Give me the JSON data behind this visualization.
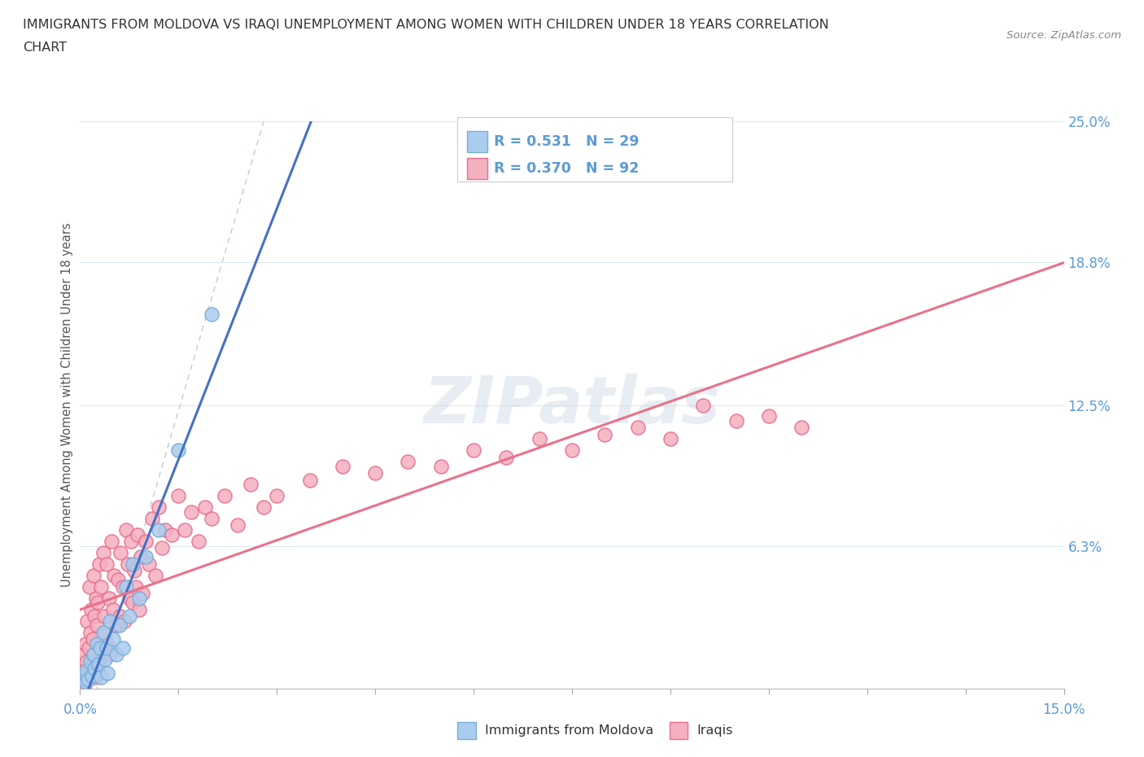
{
  "title_line1": "IMMIGRANTS FROM MOLDOVA VS IRAQI UNEMPLOYMENT AMONG WOMEN WITH CHILDREN UNDER 18 YEARS CORRELATION",
  "title_line2": "CHART",
  "source": "Source: ZipAtlas.com",
  "yaxis_label": "Unemployment Among Women with Children Under 18 years",
  "xaxis_range": [
    0,
    15
  ],
  "yaxis_range": [
    0,
    25
  ],
  "ytick_vals": [
    0,
    6.3,
    12.5,
    18.8,
    25.0
  ],
  "ytick_labels": [
    "",
    "6.3%",
    "12.5%",
    "18.8%",
    "25.0%"
  ],
  "legend_entries": [
    {
      "label": "Immigrants from Moldova",
      "R": 0.531,
      "N": 29
    },
    {
      "label": "Iraqis",
      "R": 0.37,
      "N": 92
    }
  ],
  "moldova_scatter": [
    [
      0.05,
      0.5
    ],
    [
      0.08,
      0.3
    ],
    [
      0.1,
      0.8
    ],
    [
      0.12,
      0.4
    ],
    [
      0.15,
      1.2
    ],
    [
      0.18,
      0.6
    ],
    [
      0.2,
      1.5
    ],
    [
      0.22,
      0.9
    ],
    [
      0.25,
      2.0
    ],
    [
      0.28,
      1.1
    ],
    [
      0.3,
      1.8
    ],
    [
      0.32,
      0.5
    ],
    [
      0.35,
      2.5
    ],
    [
      0.38,
      1.3
    ],
    [
      0.4,
      1.8
    ],
    [
      0.42,
      0.7
    ],
    [
      0.45,
      3.0
    ],
    [
      0.5,
      2.2
    ],
    [
      0.55,
      1.5
    ],
    [
      0.6,
      2.8
    ],
    [
      0.65,
      1.8
    ],
    [
      0.7,
      4.5
    ],
    [
      0.75,
      3.2
    ],
    [
      0.8,
      5.5
    ],
    [
      0.9,
      4.0
    ],
    [
      1.0,
      5.8
    ],
    [
      1.2,
      7.0
    ],
    [
      1.5,
      10.5
    ],
    [
      2.0,
      16.5
    ]
  ],
  "iraqi_scatter": [
    [
      0.02,
      0.3
    ],
    [
      0.03,
      0.8
    ],
    [
      0.05,
      0.5
    ],
    [
      0.06,
      1.5
    ],
    [
      0.07,
      0.2
    ],
    [
      0.08,
      2.0
    ],
    [
      0.09,
      0.8
    ],
    [
      0.1,
      1.2
    ],
    [
      0.11,
      3.0
    ],
    [
      0.12,
      0.5
    ],
    [
      0.13,
      1.8
    ],
    [
      0.14,
      4.5
    ],
    [
      0.15,
      2.5
    ],
    [
      0.16,
      1.0
    ],
    [
      0.17,
      3.5
    ],
    [
      0.18,
      0.8
    ],
    [
      0.19,
      2.2
    ],
    [
      0.2,
      5.0
    ],
    [
      0.21,
      1.5
    ],
    [
      0.22,
      3.2
    ],
    [
      0.23,
      0.5
    ],
    [
      0.24,
      4.0
    ],
    [
      0.25,
      2.8
    ],
    [
      0.26,
      1.2
    ],
    [
      0.27,
      3.8
    ],
    [
      0.28,
      0.7
    ],
    [
      0.29,
      5.5
    ],
    [
      0.3,
      2.0
    ],
    [
      0.32,
      4.5
    ],
    [
      0.33,
      1.8
    ],
    [
      0.35,
      6.0
    ],
    [
      0.37,
      3.2
    ],
    [
      0.38,
      2.5
    ],
    [
      0.4,
      5.5
    ],
    [
      0.42,
      2.0
    ],
    [
      0.44,
      4.0
    ],
    [
      0.45,
      1.5
    ],
    [
      0.48,
      6.5
    ],
    [
      0.5,
      3.5
    ],
    [
      0.52,
      5.0
    ],
    [
      0.55,
      2.8
    ],
    [
      0.58,
      4.8
    ],
    [
      0.6,
      3.2
    ],
    [
      0.62,
      6.0
    ],
    [
      0.65,
      4.5
    ],
    [
      0.68,
      3.0
    ],
    [
      0.7,
      7.0
    ],
    [
      0.73,
      5.5
    ],
    [
      0.75,
      4.0
    ],
    [
      0.78,
      6.5
    ],
    [
      0.8,
      3.8
    ],
    [
      0.83,
      5.2
    ],
    [
      0.85,
      4.5
    ],
    [
      0.88,
      6.8
    ],
    [
      0.9,
      3.5
    ],
    [
      0.93,
      5.8
    ],
    [
      0.95,
      4.2
    ],
    [
      1.0,
      6.5
    ],
    [
      1.05,
      5.5
    ],
    [
      1.1,
      7.5
    ],
    [
      1.15,
      5.0
    ],
    [
      1.2,
      8.0
    ],
    [
      1.25,
      6.2
    ],
    [
      1.3,
      7.0
    ],
    [
      1.4,
      6.8
    ],
    [
      1.5,
      8.5
    ],
    [
      1.6,
      7.0
    ],
    [
      1.7,
      7.8
    ],
    [
      1.8,
      6.5
    ],
    [
      1.9,
      8.0
    ],
    [
      2.0,
      7.5
    ],
    [
      2.2,
      8.5
    ],
    [
      2.4,
      7.2
    ],
    [
      2.6,
      9.0
    ],
    [
      2.8,
      8.0
    ],
    [
      3.0,
      8.5
    ],
    [
      3.5,
      9.2
    ],
    [
      4.0,
      9.8
    ],
    [
      4.5,
      9.5
    ],
    [
      5.0,
      10.0
    ],
    [
      5.5,
      9.8
    ],
    [
      6.0,
      10.5
    ],
    [
      6.5,
      10.2
    ],
    [
      7.0,
      11.0
    ],
    [
      7.5,
      10.5
    ],
    [
      8.0,
      11.2
    ],
    [
      8.5,
      11.5
    ],
    [
      9.0,
      11.0
    ],
    [
      9.5,
      12.5
    ],
    [
      10.0,
      11.8
    ],
    [
      10.5,
      12.0
    ],
    [
      11.0,
      11.5
    ]
  ],
  "watermark_text": "ZIPatlas",
  "title_color": "#333333",
  "blue_line_color": "#4472c4",
  "pink_line_color": "#e8728a",
  "blue_scatter_face": "#aaccee",
  "blue_scatter_edge": "#7aaed8",
  "pink_scatter_face": "#f5b0c0",
  "pink_scatter_edge": "#e87090",
  "axis_tick_color": "#5b9bd5",
  "dashed_line_color": "#b8c8d8",
  "grid_color": "#dde8f0",
  "source_text": "Source: ZipAtlas.com"
}
